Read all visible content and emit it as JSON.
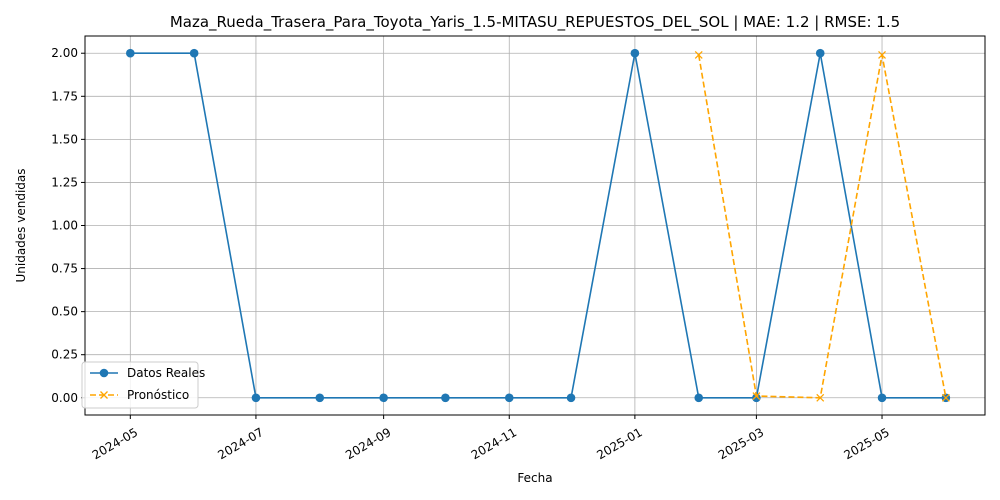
{
  "chart_data": {
    "type": "line",
    "title": "Maza_Rueda_Trasera_Para_Toyota_Yaris_1.5-MITASU_REPUESTOS_DEL_SOL | MAE: 1.2 | RMSE: 1.5",
    "xlabel": "Fecha",
    "ylabel": "Unidades vendidas",
    "xlim": [
      "2024-04-09",
      "2025-06-20"
    ],
    "ylim": [
      -0.1,
      2.1
    ],
    "grid": true,
    "legend_position": "lower-left",
    "x_ticks": [
      {
        "date": "2024-05-01",
        "label": "2024-05"
      },
      {
        "date": "2024-07-01",
        "label": "2024-07"
      },
      {
        "date": "2024-09-01",
        "label": "2024-09"
      },
      {
        "date": "2024-11-01",
        "label": "2024-11"
      },
      {
        "date": "2025-01-01",
        "label": "2025-01"
      },
      {
        "date": "2025-03-01",
        "label": "2025-03"
      },
      {
        "date": "2025-05-01",
        "label": "2025-05"
      }
    ],
    "y_ticks": [
      {
        "value": 0.0,
        "label": "0.00"
      },
      {
        "value": 0.25,
        "label": "0.25"
      },
      {
        "value": 0.5,
        "label": "0.50"
      },
      {
        "value": 0.75,
        "label": "0.75"
      },
      {
        "value": 1.0,
        "label": "1.00"
      },
      {
        "value": 1.25,
        "label": "1.25"
      },
      {
        "value": 1.5,
        "label": "1.50"
      },
      {
        "value": 1.75,
        "label": "1.75"
      },
      {
        "value": 2.0,
        "label": "2.00"
      }
    ],
    "series": [
      {
        "name": "Datos Reales",
        "color": "#1f77b4",
        "marker": "circle",
        "linestyle": "solid",
        "x": [
          "2024-05-01",
          "2024-06-01",
          "2024-07-01",
          "2024-08-01",
          "2024-09-01",
          "2024-10-01",
          "2024-11-01",
          "2024-12-01",
          "2025-01-01",
          "2025-02-01",
          "2025-03-01",
          "2025-04-01",
          "2025-05-01",
          "2025-06-01"
        ],
        "y": [
          2,
          2,
          0,
          0,
          0,
          0,
          0,
          0,
          2,
          0,
          0,
          2,
          0,
          0
        ]
      },
      {
        "name": "Pronóstico",
        "color": "#ffa500",
        "marker": "x",
        "linestyle": "dashed",
        "x": [
          "2025-02-01",
          "2025-03-01",
          "2025-04-01",
          "2025-05-01",
          "2025-06-01"
        ],
        "y": [
          1.99,
          0.01,
          0.0,
          1.99,
          0.0
        ]
      }
    ]
  }
}
